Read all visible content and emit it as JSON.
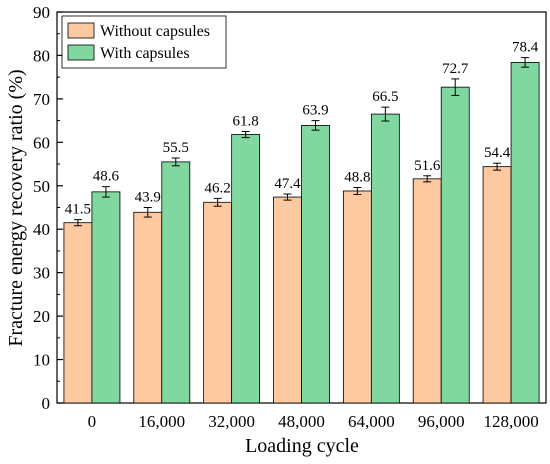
{
  "chart_data": {
    "type": "bar",
    "xlabel": "Loading cycle",
    "ylabel": "Fracture energy recovery ratio (%)",
    "ylim": [
      0,
      90
    ],
    "yticks": [
      0,
      10,
      20,
      30,
      40,
      50,
      60,
      70,
      80,
      90
    ],
    "categories": [
      "0",
      "16,000",
      "32,000",
      "48,000",
      "64,000",
      "96,000",
      "128,000"
    ],
    "series": [
      {
        "name": "Without capsules",
        "color": "#FCC9A0",
        "values": [
          41.5,
          43.9,
          46.2,
          47.4,
          48.8,
          51.6,
          54.4
        ],
        "labels": [
          "41.5",
          "43.9",
          "46.2",
          "47.4",
          "48.8",
          "51.6",
          "54.4"
        ],
        "errors": [
          0.7,
          1.1,
          0.9,
          0.7,
          0.8,
          0.7,
          0.8
        ]
      },
      {
        "name": "With capsules",
        "color": "#80D7A0",
        "values": [
          48.6,
          55.5,
          61.8,
          63.9,
          66.5,
          72.7,
          78.4
        ],
        "labels": [
          "48.6",
          "55.5",
          "61.8",
          "63.9",
          "66.5",
          "72.7",
          "78.4"
        ],
        "errors": [
          1.2,
          0.9,
          0.7,
          1.1,
          1.6,
          1.9,
          1.1
        ]
      }
    ],
    "legend_position": "top-left",
    "grid": false
  }
}
